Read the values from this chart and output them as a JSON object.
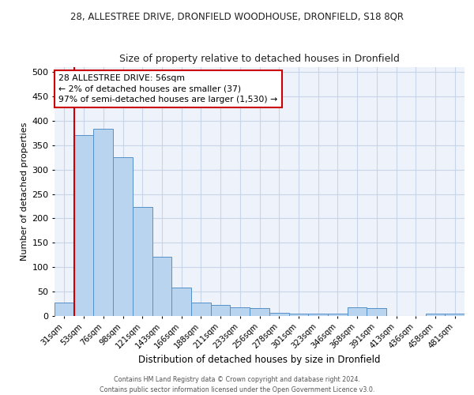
{
  "title1": "28, ALLESTREE DRIVE, DRONFIELD WOODHOUSE, DRONFIELD, S18 8QR",
  "title2": "Size of property relative to detached houses in Dronfield",
  "xlabel": "Distribution of detached houses by size in Dronfield",
  "ylabel": "Number of detached properties",
  "categories": [
    "31sqm",
    "53sqm",
    "76sqm",
    "98sqm",
    "121sqm",
    "143sqm",
    "166sqm",
    "188sqm",
    "211sqm",
    "233sqm",
    "256sqm",
    "278sqm",
    "301sqm",
    "323sqm",
    "346sqm",
    "368sqm",
    "391sqm",
    "413sqm",
    "436sqm",
    "458sqm",
    "481sqm"
  ],
  "values": [
    28,
    370,
    383,
    325,
    224,
    121,
    59,
    28,
    23,
    18,
    16,
    6,
    5,
    5,
    5,
    18,
    16,
    0,
    0,
    5,
    5
  ],
  "bar_color": "#b8d4ee",
  "bar_edge_color": "#5590c8",
  "vline_x": 0.5,
  "vline_color": "#cc0000",
  "annotation_text": "28 ALLESTREE DRIVE: 56sqm\n← 2% of detached houses are smaller (37)\n97% of semi-detached houses are larger (1,530) →",
  "annotation_box_color": "#ffffff",
  "annotation_box_edge": "#cc0000",
  "ylim": [
    0,
    510
  ],
  "yticks": [
    0,
    50,
    100,
    150,
    200,
    250,
    300,
    350,
    400,
    450,
    500
  ],
  "footer": "Contains HM Land Registry data © Crown copyright and database right 2024.\nContains public sector information licensed under the Open Government Licence v3.0.",
  "bg_color": "#eef2fb",
  "grid_color": "#c8d4e8",
  "fig_width": 6.0,
  "fig_height": 5.0
}
